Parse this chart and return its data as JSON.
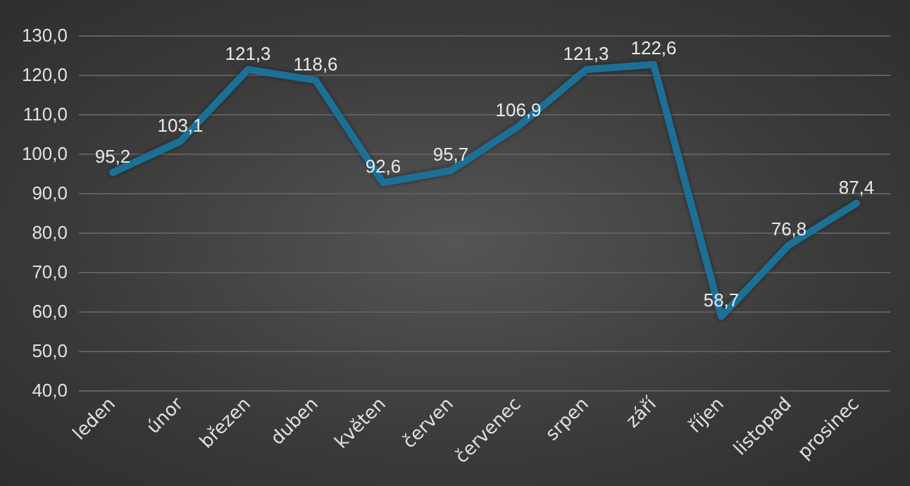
{
  "chart_data": {
    "type": "line",
    "categories": [
      "leden",
      "únor",
      "březen",
      "duben",
      "květen",
      "červen",
      "červenec",
      "srpen",
      "září",
      "říjen",
      "listopad",
      "prosinec"
    ],
    "series": [
      {
        "color": "#1d6f96",
        "values": [
          95.2,
          103.1,
          121.3,
          118.6,
          92.6,
          95.7,
          106.9,
          121.3,
          122.6,
          58.7,
          76.8,
          87.4
        ],
        "value_labels": [
          "95,2",
          "103,1",
          "121,3",
          "118,6",
          "92,6",
          "95,7",
          "106,9",
          "121,3",
          "122,6",
          "58,7",
          "76,8",
          "87,4"
        ]
      }
    ],
    "ylim": [
      40,
      130
    ],
    "yticks": [
      {
        "value": 40,
        "label": "40,0"
      },
      {
        "value": 50,
        "label": "50,0"
      },
      {
        "value": 60,
        "label": "60,0"
      },
      {
        "value": 70,
        "label": "70,0"
      },
      {
        "value": 80,
        "label": "80,0"
      },
      {
        "value": 90,
        "label": "90,0"
      },
      {
        "value": 100,
        "label": "100,0"
      },
      {
        "value": 110,
        "label": "110,0"
      },
      {
        "value": 120,
        "label": "120,0"
      },
      {
        "value": 130,
        "label": "130,0"
      }
    ],
    "grid": "y",
    "marker": "none",
    "line_style": "solid"
  }
}
